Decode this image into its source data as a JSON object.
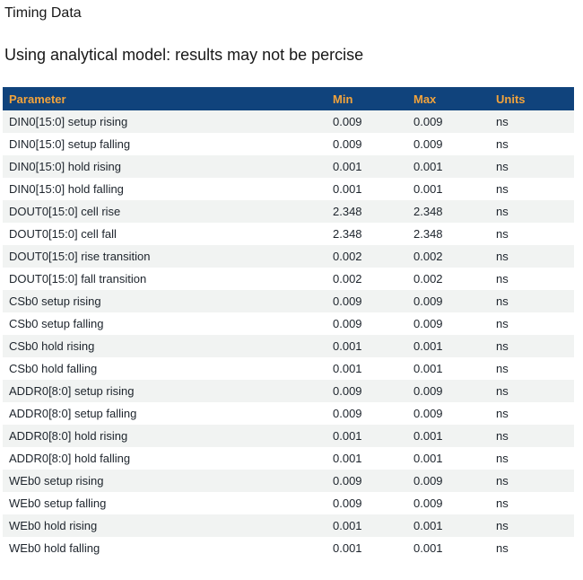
{
  "page": {
    "title": "Timing Data",
    "subtitle": "Using analytical model: results may not be percise"
  },
  "colors": {
    "header_bg": "#10437C",
    "header_text": "#F2A33C",
    "row_alt_bg": "#F1F3F2",
    "body_text": "#1D242C"
  },
  "table": {
    "columns": [
      "Parameter",
      "Min",
      "Max",
      "Units"
    ],
    "rows": [
      {
        "param": "DIN0[15:0] setup rising",
        "min": "0.009",
        "max": "0.009",
        "units": "ns"
      },
      {
        "param": "DIN0[15:0] setup falling",
        "min": "0.009",
        "max": "0.009",
        "units": "ns"
      },
      {
        "param": "DIN0[15:0] hold rising",
        "min": "0.001",
        "max": "0.001",
        "units": "ns"
      },
      {
        "param": "DIN0[15:0] hold falling",
        "min": "0.001",
        "max": "0.001",
        "units": "ns"
      },
      {
        "param": "DOUT0[15:0] cell rise",
        "min": "2.348",
        "max": "2.348",
        "units": "ns"
      },
      {
        "param": "DOUT0[15:0] cell fall",
        "min": "2.348",
        "max": "2.348",
        "units": "ns"
      },
      {
        "param": "DOUT0[15:0] rise transition",
        "min": "0.002",
        "max": "0.002",
        "units": "ns"
      },
      {
        "param": "DOUT0[15:0] fall transition",
        "min": "0.002",
        "max": "0.002",
        "units": "ns"
      },
      {
        "param": "CSb0 setup rising",
        "min": "0.009",
        "max": "0.009",
        "units": "ns"
      },
      {
        "param": "CSb0 setup falling",
        "min": "0.009",
        "max": "0.009",
        "units": "ns"
      },
      {
        "param": "CSb0 hold rising",
        "min": "0.001",
        "max": "0.001",
        "units": "ns"
      },
      {
        "param": "CSb0 hold falling",
        "min": "0.001",
        "max": "0.001",
        "units": "ns"
      },
      {
        "param": "ADDR0[8:0] setup rising",
        "min": "0.009",
        "max": "0.009",
        "units": "ns"
      },
      {
        "param": "ADDR0[8:0] setup falling",
        "min": "0.009",
        "max": "0.009",
        "units": "ns"
      },
      {
        "param": "ADDR0[8:0] hold rising",
        "min": "0.001",
        "max": "0.001",
        "units": "ns"
      },
      {
        "param": "ADDR0[8:0] hold falling",
        "min": "0.001",
        "max": "0.001",
        "units": "ns"
      },
      {
        "param": "WEb0 setup rising",
        "min": "0.009",
        "max": "0.009",
        "units": "ns"
      },
      {
        "param": "WEb0 setup falling",
        "min": "0.009",
        "max": "0.009",
        "units": "ns"
      },
      {
        "param": "WEb0 hold rising",
        "min": "0.001",
        "max": "0.001",
        "units": "ns"
      },
      {
        "param": "WEb0 hold falling",
        "min": "0.001",
        "max": "0.001",
        "units": "ns"
      }
    ]
  }
}
